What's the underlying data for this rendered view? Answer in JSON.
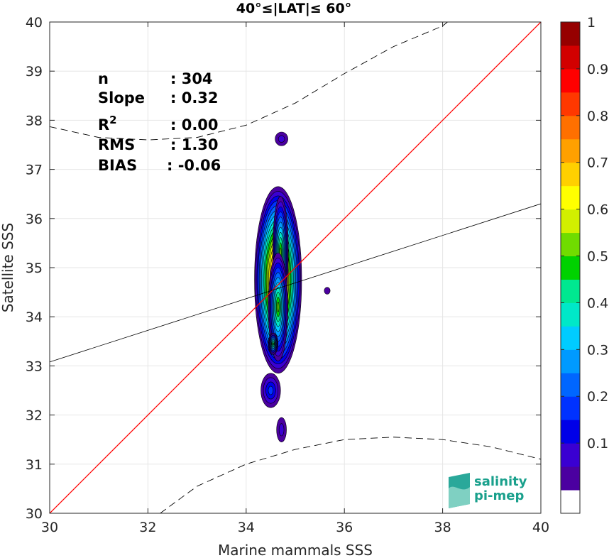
{
  "chart_data": {
    "type": "heatmap",
    "title": "40°≤|LAT|≤ 60°",
    "xlabel": "Marine mammals SSS",
    "ylabel": "Satellite SSS",
    "xlim": [
      30,
      40
    ],
    "ylim": [
      30,
      40
    ],
    "xticks": [
      "30",
      "32",
      "34",
      "36",
      "38",
      "40"
    ],
    "yticks": [
      "30",
      "31",
      "32",
      "33",
      "34",
      "35",
      "36",
      "37",
      "38",
      "39",
      "40"
    ],
    "grid": true,
    "stats": [
      {
        "label": "n",
        "value": ": 304"
      },
      {
        "label": "Slope",
        "value": ": 0.32"
      },
      {
        "label": "R",
        "sup": "2",
        "value": ": 0.00"
      },
      {
        "label": "RMS",
        "value": ": 1.30"
      },
      {
        "label": "BIAS",
        "value": ": -0.06"
      }
    ],
    "identity_line": {
      "x": [
        30,
        40
      ],
      "y": [
        30,
        40
      ],
      "color": "#ff0000"
    },
    "regression_line": {
      "x": [
        30,
        40
      ],
      "y": [
        33.08,
        36.3
      ],
      "color": "#000000"
    },
    "dashed_upper": {
      "x": [
        30,
        31,
        32,
        33,
        34,
        35,
        36,
        37,
        38,
        38.1
      ],
      "y": [
        37.87,
        37.65,
        37.6,
        37.65,
        37.9,
        38.35,
        38.95,
        39.5,
        39.92,
        40
      ]
    },
    "dashed_lower": {
      "x": [
        32.25,
        33,
        34,
        35,
        36,
        37,
        38,
        39,
        40
      ],
      "y": [
        30,
        30.55,
        31.0,
        31.3,
        31.5,
        31.55,
        31.5,
        31.35,
        31.1
      ]
    },
    "density_blobs": [
      {
        "cx": 34.65,
        "cy": 34.75,
        "rx": 0.48,
        "ry": 1.9
      },
      {
        "cx": 34.7,
        "cy": 35.3,
        "rx": 0.16,
        "ry": 1.15
      },
      {
        "cx": 34.65,
        "cy": 34.2,
        "rx": 0.2,
        "ry": 1.1
      },
      {
        "cx": 34.55,
        "cy": 33.45,
        "rx": 0.1,
        "ry": 0.22
      },
      {
        "cx": 34.5,
        "cy": 32.5,
        "rx": 0.2,
        "ry": 0.35
      },
      {
        "cx": 34.72,
        "cy": 37.62,
        "rx": 0.13,
        "ry": 0.14
      },
      {
        "cx": 34.72,
        "cy": 31.7,
        "rx": 0.1,
        "ry": 0.25
      },
      {
        "cx": 35.65,
        "cy": 34.53,
        "rx": 0.06,
        "ry": 0.07
      }
    ],
    "colorbar": {
      "ticks": [
        "0.1",
        "0.2",
        "0.3",
        "0.4",
        "0.5",
        "0.6",
        "0.7",
        "0.8",
        "0.9",
        "1"
      ],
      "colors": [
        "#ffffff",
        "#4b00a0",
        "#3a00d2",
        "#0000e8",
        "#0032ff",
        "#0066ff",
        "#009aff",
        "#00ccff",
        "#00e8c8",
        "#00e890",
        "#00d200",
        "#70dc00",
        "#d2f000",
        "#ffff00",
        "#ffd000",
        "#ffa000",
        "#ff7000",
        "#ff3800",
        "#ff0000",
        "#d20000",
        "#960000"
      ]
    }
  },
  "logo": {
    "line1": "salinity",
    "line2": "pi-mep"
  }
}
